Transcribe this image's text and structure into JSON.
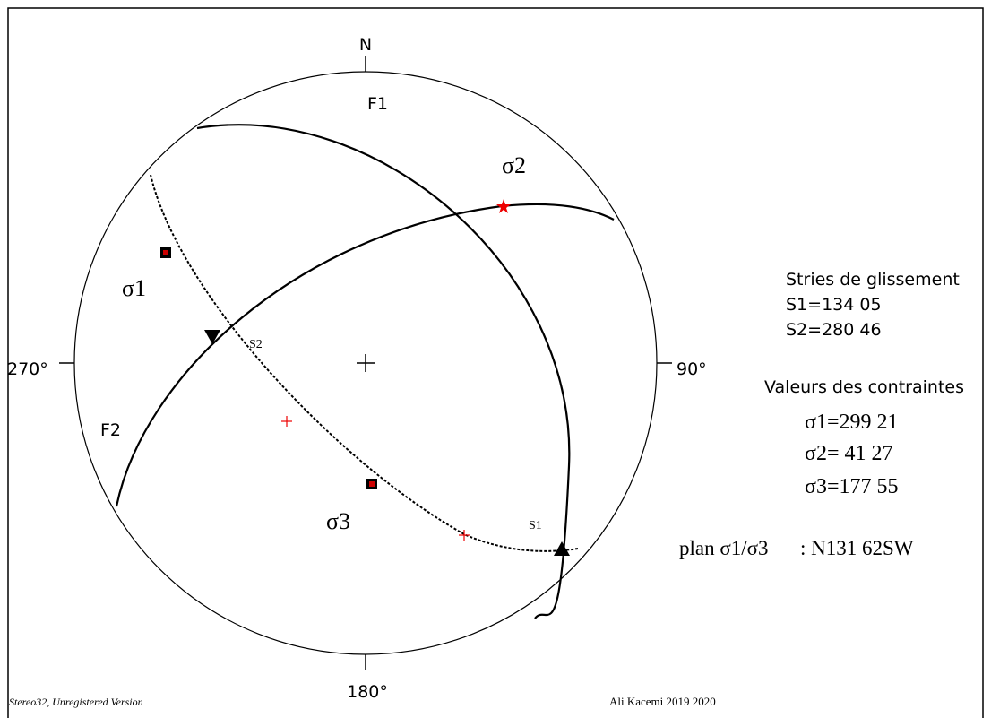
{
  "compass": {
    "north": "N",
    "west": "270°",
    "east": "90°",
    "south": "180°"
  },
  "plot_labels": {
    "f1": "F1",
    "f2": "F2",
    "sigma2": "σ2",
    "sigma1": "σ1",
    "s2": "S2",
    "sigma3": "σ3",
    "s1": "S1"
  },
  "striations": {
    "title": "Stries de glissement",
    "s1": "S1=134 05",
    "s2": "S2=280 46"
  },
  "stresses": {
    "title": "Valeurs des contraintes",
    "sigma1": "σ1=299 21",
    "sigma2": "σ2= 41 27",
    "sigma3": "σ3=177 55"
  },
  "plane": {
    "label": "plan σ1/σ3",
    "value": ": N131 62SW"
  },
  "footer": {
    "software": "Stereo32, Unregistered Version",
    "author": "Ali Kacemi 2019 2020"
  }
}
